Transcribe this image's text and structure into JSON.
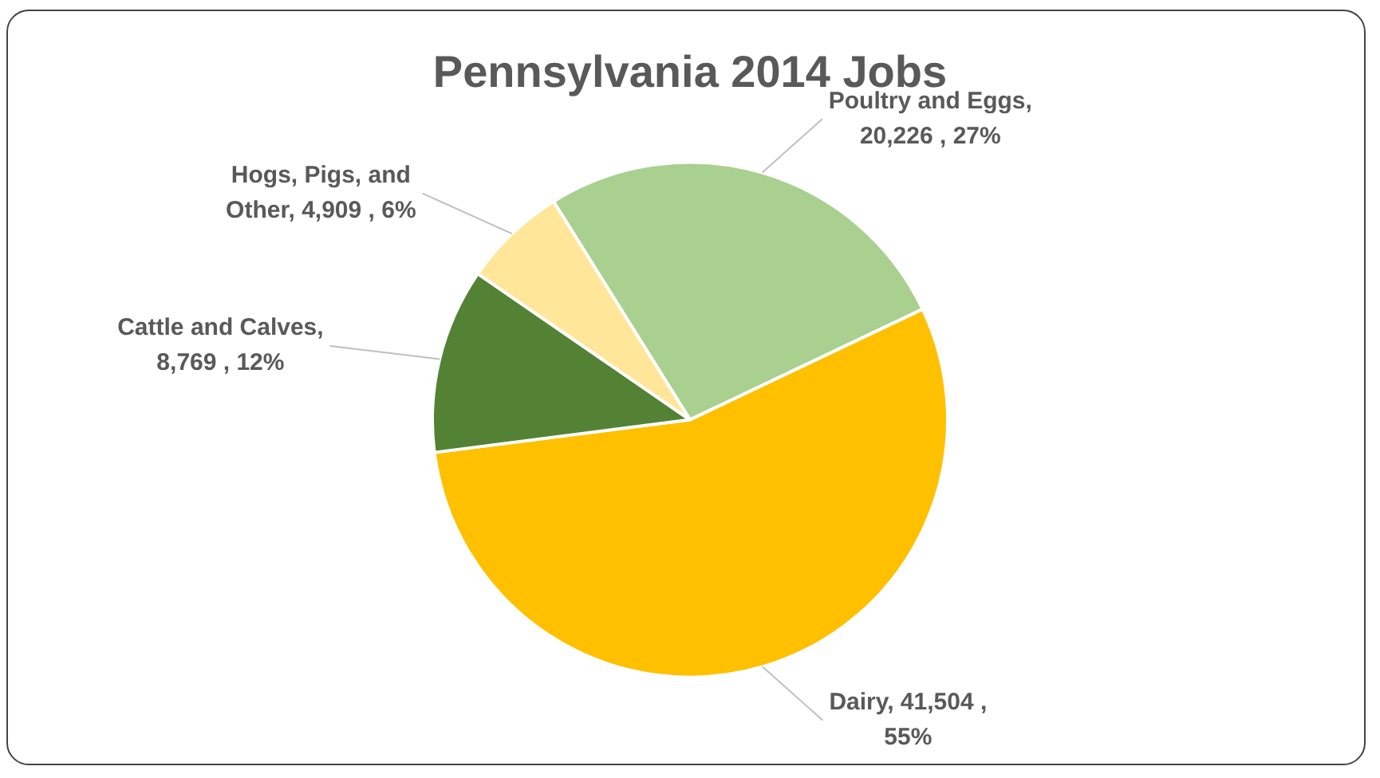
{
  "chart_data": {
    "type": "pie",
    "title": "Pennsylvania 2014 Jobs",
    "categories": [
      "Poultry and Eggs",
      "Dairy",
      "Cattle and Calves",
      "Hogs, Pigs, and Other"
    ],
    "values": [
      20226,
      41504,
      8769,
      4909
    ],
    "value_labels": [
      ", 20,226 , 27%",
      ", 41,504 , 55%",
      ", 8,769 , 12%",
      ", 4,909 , 6%"
    ],
    "colors": [
      "#a9d08e",
      "#ffc000",
      "#548235",
      "#ffe699"
    ],
    "legend": false
  }
}
